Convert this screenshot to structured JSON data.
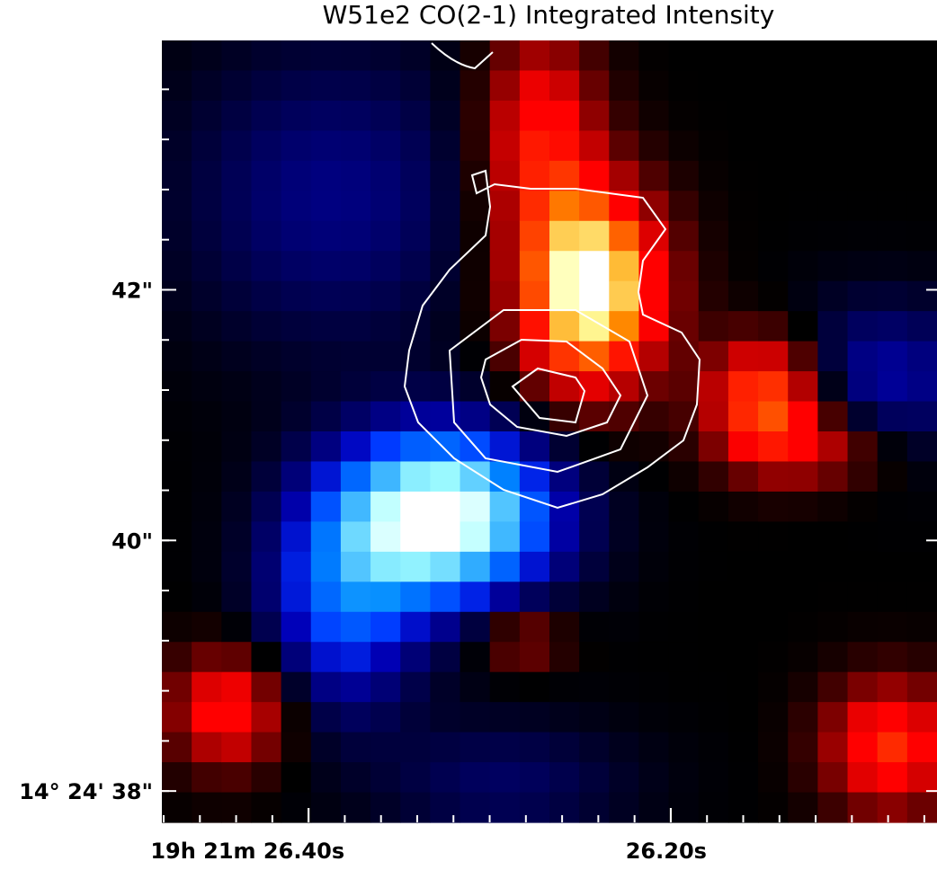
{
  "chart_data": {
    "type": "image",
    "title": "W51e2 CO(2-1) Integrated Intensity",
    "xlim": [
      26.481,
      26.053
    ],
    "ylim": [
      37.75,
      43.99
    ],
    "xticks": [
      {
        "value": 26.4,
        "label": "19h 21m 26.40s"
      },
      {
        "value": 26.2,
        "label": "26.20s"
      }
    ],
    "yticks": [
      {
        "value": 38,
        "label": "14° 24' 38\""
      },
      {
        "value": 40,
        "label": "40\""
      },
      {
        "value": 42,
        "label": "42\""
      }
    ]
  }
}
